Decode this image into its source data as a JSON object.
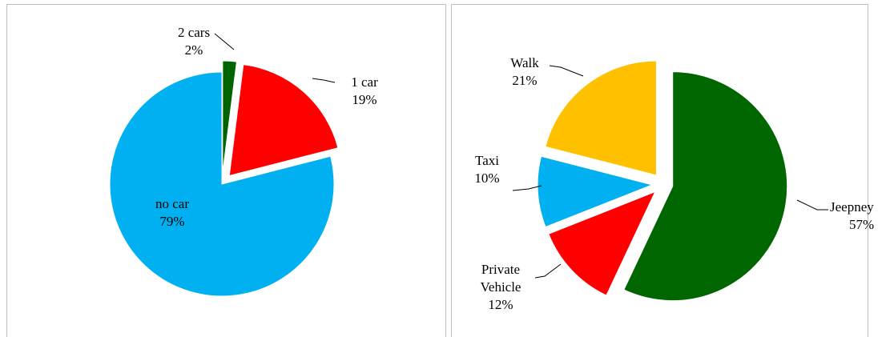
{
  "chart_data": [
    {
      "type": "pie",
      "categories": [
        "2 cars",
        "1 car",
        "no car"
      ],
      "values": [
        2,
        19,
        79
      ],
      "value_labels": [
        "2%",
        "19%",
        "79%"
      ],
      "colors": [
        "#006400",
        "#ff0000",
        "#00b0f0"
      ]
    },
    {
      "type": "pie",
      "categories": [
        "Jeepney",
        "Private Vehicle",
        "Taxi",
        "Walk"
      ],
      "values": [
        57,
        12,
        10,
        21
      ],
      "value_labels": [
        "57%",
        "12%",
        "10%",
        "21%"
      ],
      "colors": [
        "#006600",
        "#ff0000",
        "#00b0f0",
        "#ffc000"
      ]
    }
  ]
}
